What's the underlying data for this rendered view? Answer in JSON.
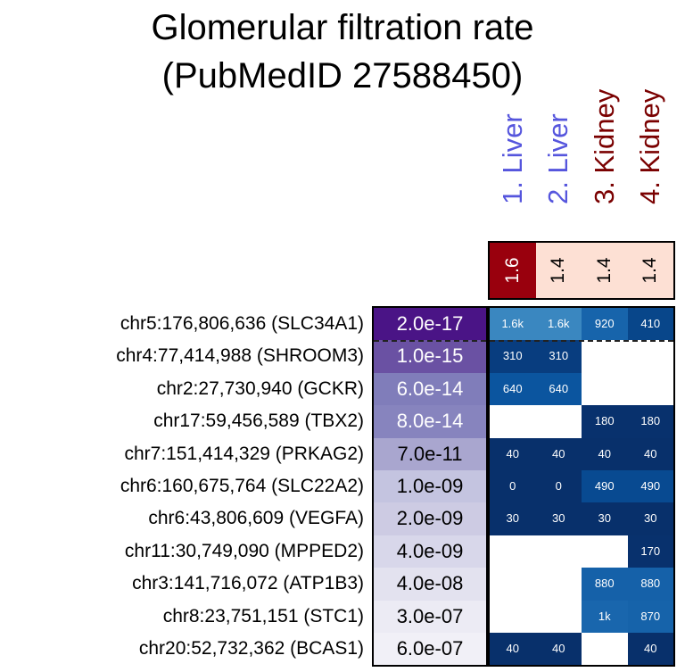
{
  "chart_data": {
    "type": "heatmap",
    "title": [
      "Glomerular filtration rate",
      "(PubMedID 27588450)"
    ],
    "columns": [
      {
        "label": "1. Liver",
        "color": "#5555dd"
      },
      {
        "label": "2. Liver",
        "color": "#5555dd"
      },
      {
        "label": "3. Kidney",
        "color": "#7a0000"
      },
      {
        "label": "4. Kidney",
        "color": "#7a0000"
      }
    ],
    "column_scores": [
      "1.6",
      "1.4",
      "1.4",
      "1.4"
    ],
    "column_score_colors": [
      "#99000d",
      "#fde0d4",
      "#fde0d4",
      "#fde0d4"
    ],
    "rows": [
      {
        "label": "chr5:176,806,636 (SLC34A1)",
        "p": "2.0e-17",
        "pcolor": "#4a1486",
        "values": [
          "1.6k",
          "1.6k",
          "920",
          "410"
        ],
        "colors": [
          "#3a87c0",
          "#3a87c0",
          "#1764ab",
          "#08468a"
        ]
      },
      {
        "label": "chr4:77,414,988 (SHROOM3)",
        "p": "1.0e-15",
        "pcolor": "#6a51a3",
        "values": [
          "310",
          "310",
          null,
          null
        ],
        "colors": [
          "#083d7f",
          "#083d7f",
          null,
          null
        ]
      },
      {
        "label": "chr2:27,730,940 (GCKR)",
        "p": "6.0e-14",
        "pcolor": "#807dba",
        "values": [
          "640",
          "640",
          null,
          null
        ],
        "colors": [
          "#0b559f",
          "#0b559f",
          null,
          null
        ]
      },
      {
        "label": "chr17:59,456,589 (TBX2)",
        "p": "8.0e-14",
        "pcolor": "#8784be",
        "values": [
          null,
          null,
          "180",
          "180"
        ],
        "colors": [
          null,
          null,
          "#08316d",
          "#08316d"
        ]
      },
      {
        "label": "chr7:151,414,329 (PRKAG2)",
        "p": "7.0e-11",
        "pcolor": "#a9a6cf",
        "values": [
          "40",
          "40",
          "40",
          "40"
        ],
        "colors": [
          "#08306b",
          "#08306b",
          "#08306b",
          "#08306b"
        ]
      },
      {
        "label": "chr6:160,675,764 (SLC22A2)",
        "p": "1.0e-09",
        "pcolor": "#c4c4e0",
        "values": [
          "0",
          "0",
          "490",
          "490"
        ],
        "colors": [
          "#08306b",
          "#08306b",
          "#084a91",
          "#084a91"
        ]
      },
      {
        "label": "chr6:43,806,609 (VEGFA)",
        "p": "2.0e-09",
        "pcolor": "#cdcbe3",
        "values": [
          "30",
          "30",
          "30",
          "30"
        ],
        "colors": [
          "#08306b",
          "#08306b",
          "#08306b",
          "#08306b"
        ]
      },
      {
        "label": "chr11:30,749,090 (MPPED2)",
        "p": "4.0e-09",
        "pcolor": "#d8d7ea",
        "values": [
          null,
          null,
          null,
          "170"
        ],
        "colors": [
          null,
          null,
          null,
          "#08316d"
        ]
      },
      {
        "label": "chr3:141,716,072 (ATP1B3)",
        "p": "4.0e-08",
        "pcolor": "#e3e2ef",
        "values": [
          null,
          null,
          "880",
          "880"
        ],
        "colors": [
          null,
          null,
          "#1561a9",
          "#1561a9"
        ]
      },
      {
        "label": "chr8:23,751,151 (STC1)",
        "p": "3.0e-07",
        "pcolor": "#ecebf4",
        "values": [
          null,
          null,
          "1k",
          "870"
        ],
        "colors": [
          null,
          null,
          "#1966ad",
          "#1663aa"
        ]
      },
      {
        "label": "chr20:52,732,362 (BCAS1)",
        "p": "6.0e-07",
        "pcolor": "#f1f0f7",
        "values": [
          "40",
          "40",
          null,
          "40"
        ],
        "colors": [
          "#08306b",
          "#08306b",
          null,
          "#08306b"
        ]
      }
    ]
  }
}
